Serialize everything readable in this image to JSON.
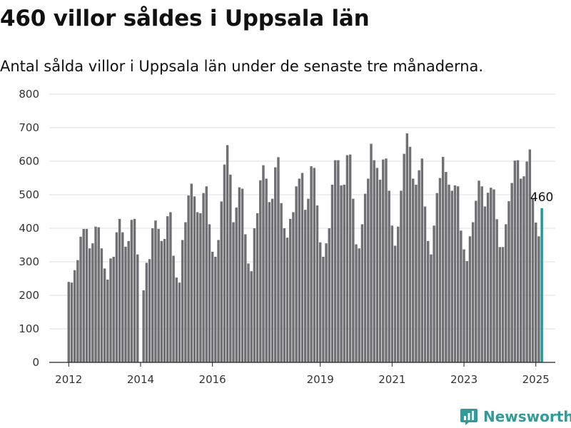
{
  "title": "460 villor såldes i Uppsala län",
  "subtitle": "Antal sålda villor i Uppsala län under de senaste tre månaderna.",
  "brand": {
    "name": "Newsworthy",
    "color": "#2f9c9a"
  },
  "colors": {
    "bar": "#707074",
    "highlight": "#1f9b95",
    "grid": "#dddddd",
    "axis": "#222222"
  },
  "chart_data": {
    "type": "bar",
    "title": "460 villor såldes i Uppsala län",
    "subtitle": "Antal sålda villor i Uppsala län under de senaste tre månaderna.",
    "xlabel": "",
    "ylabel": "",
    "x_unit": "month",
    "x_start": "2012-01",
    "x_end": "2025-03",
    "xlim": [
      "2011-07",
      "2025-08"
    ],
    "ylim": [
      0,
      800
    ],
    "yticks": [
      0,
      100,
      200,
      300,
      400,
      500,
      600,
      700,
      800
    ],
    "xticks": [
      {
        "label": "2012",
        "date": "2012-01"
      },
      {
        "label": "2014",
        "date": "2014-01"
      },
      {
        "label": "2016",
        "date": "2016-01"
      },
      {
        "label": "2019",
        "date": "2019-01"
      },
      {
        "label": "2021",
        "date": "2021-01"
      },
      {
        "label": "2023",
        "date": "2023-01"
      },
      {
        "label": "2025",
        "date": "2025-01"
      }
    ],
    "grid": true,
    "legend": "none",
    "values": [
      240,
      238,
      275,
      305,
      375,
      398,
      398,
      340,
      355,
      405,
      403,
      340,
      280,
      247,
      310,
      315,
      388,
      428,
      388,
      345,
      362,
      425,
      428,
      322,
      null,
      215,
      297,
      308,
      400,
      423,
      398,
      362,
      368,
      436,
      448,
      318,
      253,
      238,
      365,
      418,
      498,
      533,
      495,
      448,
      445,
      505,
      525,
      412,
      330,
      315,
      365,
      480,
      590,
      648,
      560,
      418,
      462,
      522,
      518,
      382,
      295,
      272,
      400,
      445,
      543,
      588,
      548,
      478,
      488,
      582,
      612,
      475,
      400,
      372,
      428,
      448,
      525,
      548,
      565,
      455,
      488,
      585,
      580,
      468,
      358,
      315,
      355,
      400,
      530,
      603,
      603,
      528,
      530,
      618,
      620,
      488,
      352,
      340,
      412,
      503,
      548,
      652,
      603,
      580,
      545,
      605,
      608,
      512,
      408,
      348,
      405,
      512,
      622,
      683,
      643,
      548,
      530,
      573,
      608,
      465,
      362,
      322,
      408,
      505,
      550,
      613,
      568,
      530,
      512,
      528,
      525,
      393,
      337,
      302,
      376,
      418,
      482,
      542,
      525,
      465,
      506,
      521,
      516,
      427,
      344,
      344,
      412,
      481,
      535,
      602,
      603,
      548,
      555,
      599,
      635,
      488,
      417,
      376,
      460
    ],
    "highlight": {
      "date": "2025-03",
      "value": 460,
      "label": "460"
    }
  }
}
